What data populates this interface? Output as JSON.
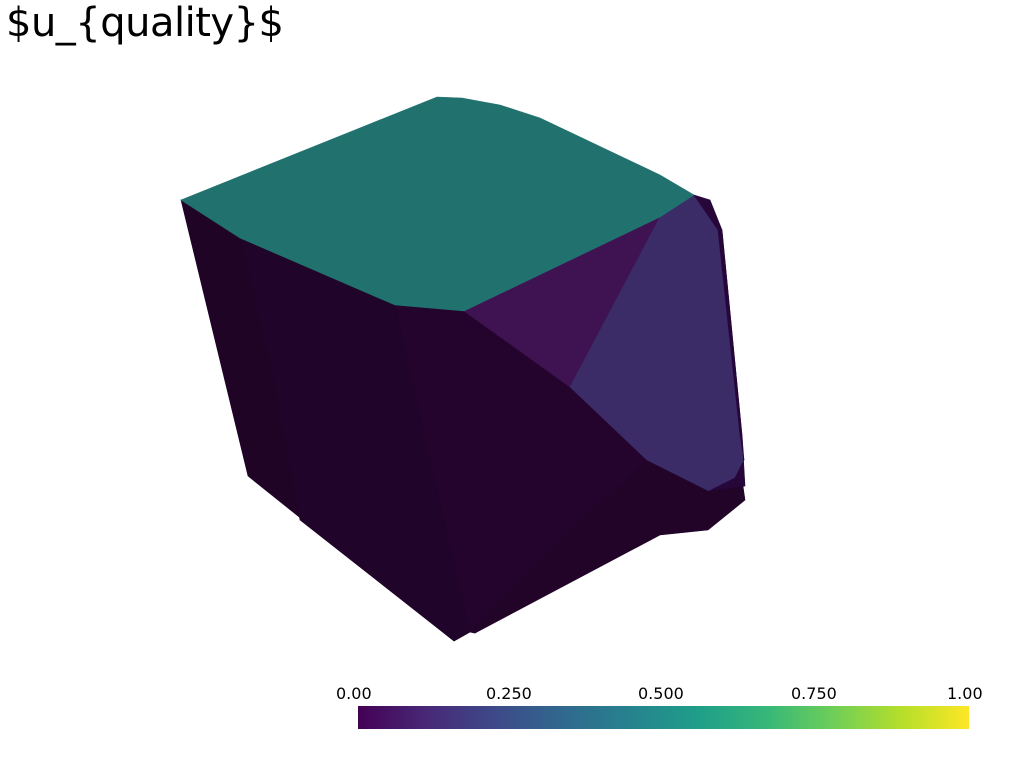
{
  "title": "$u_{quality}$",
  "scalar_bar": {
    "colormap": "viridis",
    "range": [
      0.0,
      1.0
    ],
    "tick_labels": [
      "0.00",
      "0.250",
      "0.500",
      "0.750",
      "1.00"
    ],
    "gradient_colors": [
      "#440154",
      "#482878",
      "#3e4989",
      "#31688e",
      "#26828e",
      "#1f9e89",
      "#35b779",
      "#6ece58",
      "#b5de2b",
      "#fde725"
    ]
  },
  "mesh_face_colors": {
    "top_face": "#21726f",
    "left_face": "#1f0426",
    "front_left_face": "#210429",
    "front_face": "#24042d",
    "bottom_front_face": "#220428",
    "right_upper_face": "#3f1352",
    "right_face": "#3b2b66",
    "right_bottom_strip": "#27063a"
  }
}
